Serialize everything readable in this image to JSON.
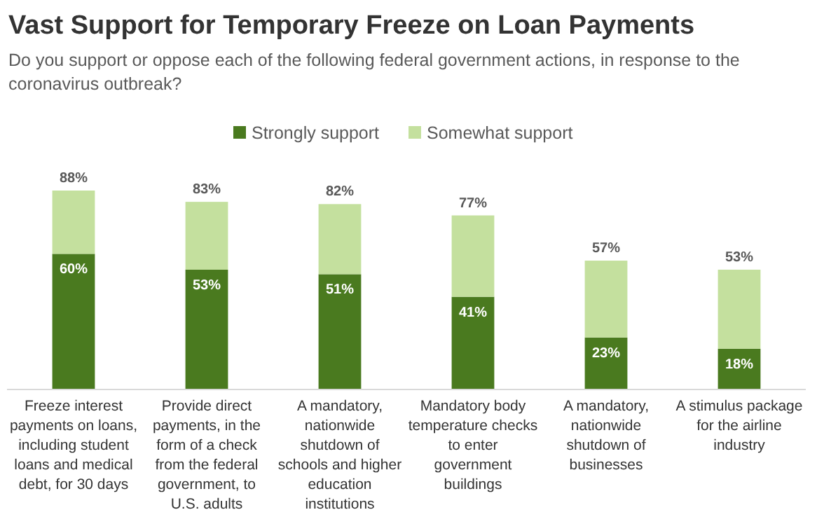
{
  "chart_data": {
    "type": "bar",
    "title": "Vast Support for Temporary Freeze on Loan Payments",
    "subtitle": "Do you support or oppose each of the following federal government actions, in response to the coronavirus outbreak?",
    "categories": [
      "Freeze interest payments on loans, including student loans and medical debt, for 30 days",
      "Provide direct payments, in the form of a check from the federal government, to U.S. adults",
      "A mandatory, nationwide shutdown of schools and higher education institutions",
      "Mandatory body temperature checks to enter government buildings",
      "A mandatory, nationwide shutdown of businesses",
      "A stimulus package for the airline industry"
    ],
    "stacked": true,
    "legend": "top",
    "series": [
      {
        "name": "Strongly support",
        "color": "#4a7a1f",
        "values": [
          60,
          53,
          51,
          41,
          23,
          18
        ],
        "value_labels": [
          "60%",
          "53%",
          "51%",
          "41%",
          "23%",
          "18%"
        ]
      },
      {
        "name": "Somewhat support",
        "color": "#c4e09e",
        "values": [
          28,
          30,
          31,
          36,
          34,
          35
        ]
      }
    ],
    "totals": [
      "88%",
      "83%",
      "82%",
      "77%",
      "57%",
      "53%"
    ]
  }
}
